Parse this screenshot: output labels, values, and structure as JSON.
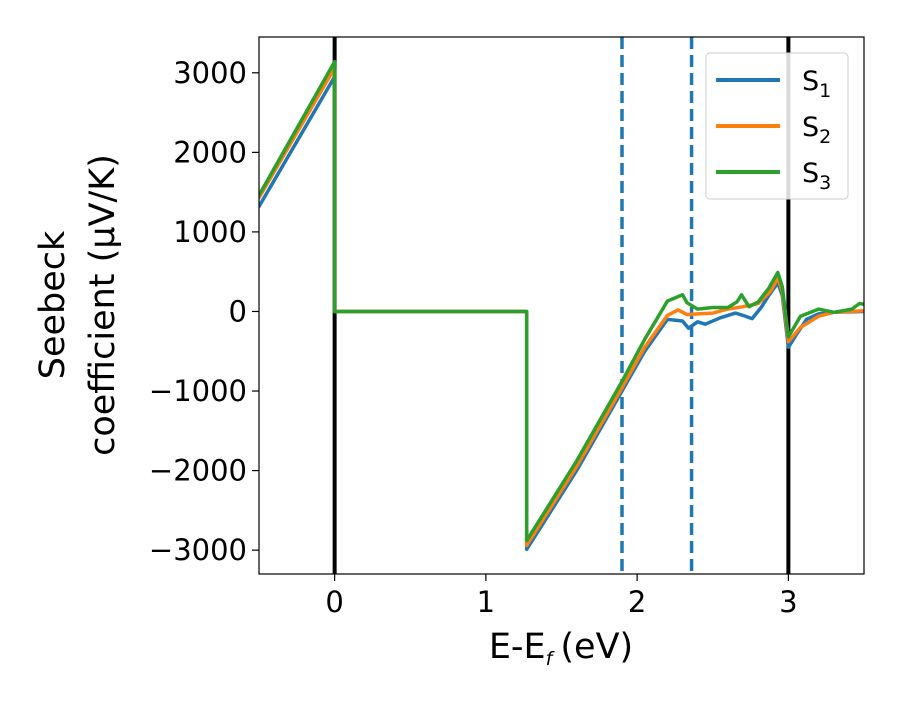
{
  "chart_data": {
    "type": "line",
    "xlabel": "E-E",
    "xlabel_sub": "f",
    "xlabel_units": "(eV)",
    "ylabel_line1": "Seebeck",
    "ylabel_line2": "coefficient  (μV/K)",
    "xlim": [
      -0.5,
      3.5
    ],
    "ylim": [
      -3300,
      3450
    ],
    "x_ticks": [
      0,
      1,
      2,
      3
    ],
    "x_tick_labels": [
      "0",
      "1",
      "2",
      "3"
    ],
    "y_ticks": [
      -3000,
      -2000,
      -1000,
      0,
      1000,
      2000,
      3000
    ],
    "y_tick_labels": [
      "−3000",
      "−2000",
      "−1000",
      "0",
      "1000",
      "2000",
      "3000"
    ],
    "grid": false,
    "legend_position": "top-right",
    "vertical_lines": [
      {
        "x": 0,
        "style": "solid",
        "color": "#000000"
      },
      {
        "x": 1.9,
        "style": "dashed",
        "color": "#1f77b4"
      },
      {
        "x": 2.36,
        "style": "dashed",
        "color": "#1f77b4"
      },
      {
        "x": 3,
        "style": "solid",
        "color": "#000000"
      }
    ],
    "series": [
      {
        "name": "S",
        "sub": "1",
        "color": "#1f77b4",
        "points": [
          [
            -0.5,
            1320
          ],
          [
            0,
            2950
          ],
          [
            0,
            0
          ],
          [
            1.27,
            0
          ],
          [
            1.27,
            -2990
          ],
          [
            1.6,
            -2000
          ],
          [
            1.9,
            -1000
          ],
          [
            2.05,
            -500
          ],
          [
            2.2,
            -100
          ],
          [
            2.3,
            -120
          ],
          [
            2.34,
            -210
          ],
          [
            2.4,
            -130
          ],
          [
            2.45,
            -160
          ],
          [
            2.55,
            -80
          ],
          [
            2.65,
            -20
          ],
          [
            2.7,
            -50
          ],
          [
            2.76,
            -90
          ],
          [
            2.82,
            50
          ],
          [
            2.87,
            200
          ],
          [
            2.93,
            360
          ],
          [
            2.96,
            200
          ],
          [
            3.0,
            -450
          ],
          [
            3.05,
            -300
          ],
          [
            3.12,
            -100
          ],
          [
            3.2,
            -30
          ],
          [
            3.3,
            -10
          ],
          [
            3.5,
            0
          ]
        ]
      },
      {
        "name": "S",
        "sub": "2",
        "color": "#ff7f0e",
        "points": [
          [
            -0.5,
            1430
          ],
          [
            0,
            3060
          ],
          [
            0,
            0
          ],
          [
            1.27,
            0
          ],
          [
            1.27,
            -2940
          ],
          [
            1.6,
            -1950
          ],
          [
            1.9,
            -960
          ],
          [
            2.05,
            -450
          ],
          [
            2.2,
            -50
          ],
          [
            2.27,
            20
          ],
          [
            2.33,
            -40
          ],
          [
            2.4,
            -30
          ],
          [
            2.5,
            -20
          ],
          [
            2.6,
            30
          ],
          [
            2.7,
            60
          ],
          [
            2.8,
            100
          ],
          [
            2.88,
            250
          ],
          [
            2.93,
            420
          ],
          [
            2.96,
            250
          ],
          [
            3.0,
            -380
          ],
          [
            3.08,
            -200
          ],
          [
            3.2,
            -60
          ],
          [
            3.3,
            -10
          ],
          [
            3.5,
            10
          ]
        ]
      },
      {
        "name": "S",
        "sub": "3",
        "color": "#2ca02c",
        "points": [
          [
            -0.5,
            1460
          ],
          [
            0,
            3140
          ],
          [
            0,
            0
          ],
          [
            1.27,
            0
          ],
          [
            1.27,
            -2880
          ],
          [
            1.6,
            -1880
          ],
          [
            1.9,
            -880
          ],
          [
            2.05,
            -350
          ],
          [
            2.2,
            130
          ],
          [
            2.3,
            210
          ],
          [
            2.33,
            110
          ],
          [
            2.4,
            30
          ],
          [
            2.5,
            50
          ],
          [
            2.6,
            50
          ],
          [
            2.66,
            120
          ],
          [
            2.69,
            210
          ],
          [
            2.74,
            60
          ],
          [
            2.8,
            120
          ],
          [
            2.87,
            290
          ],
          [
            2.93,
            490
          ],
          [
            2.96,
            310
          ],
          [
            3.0,
            -320
          ],
          [
            3.08,
            -60
          ],
          [
            3.2,
            30
          ],
          [
            3.3,
            -10
          ],
          [
            3.42,
            30
          ],
          [
            3.47,
            100
          ],
          [
            3.5,
            90
          ]
        ]
      }
    ]
  }
}
